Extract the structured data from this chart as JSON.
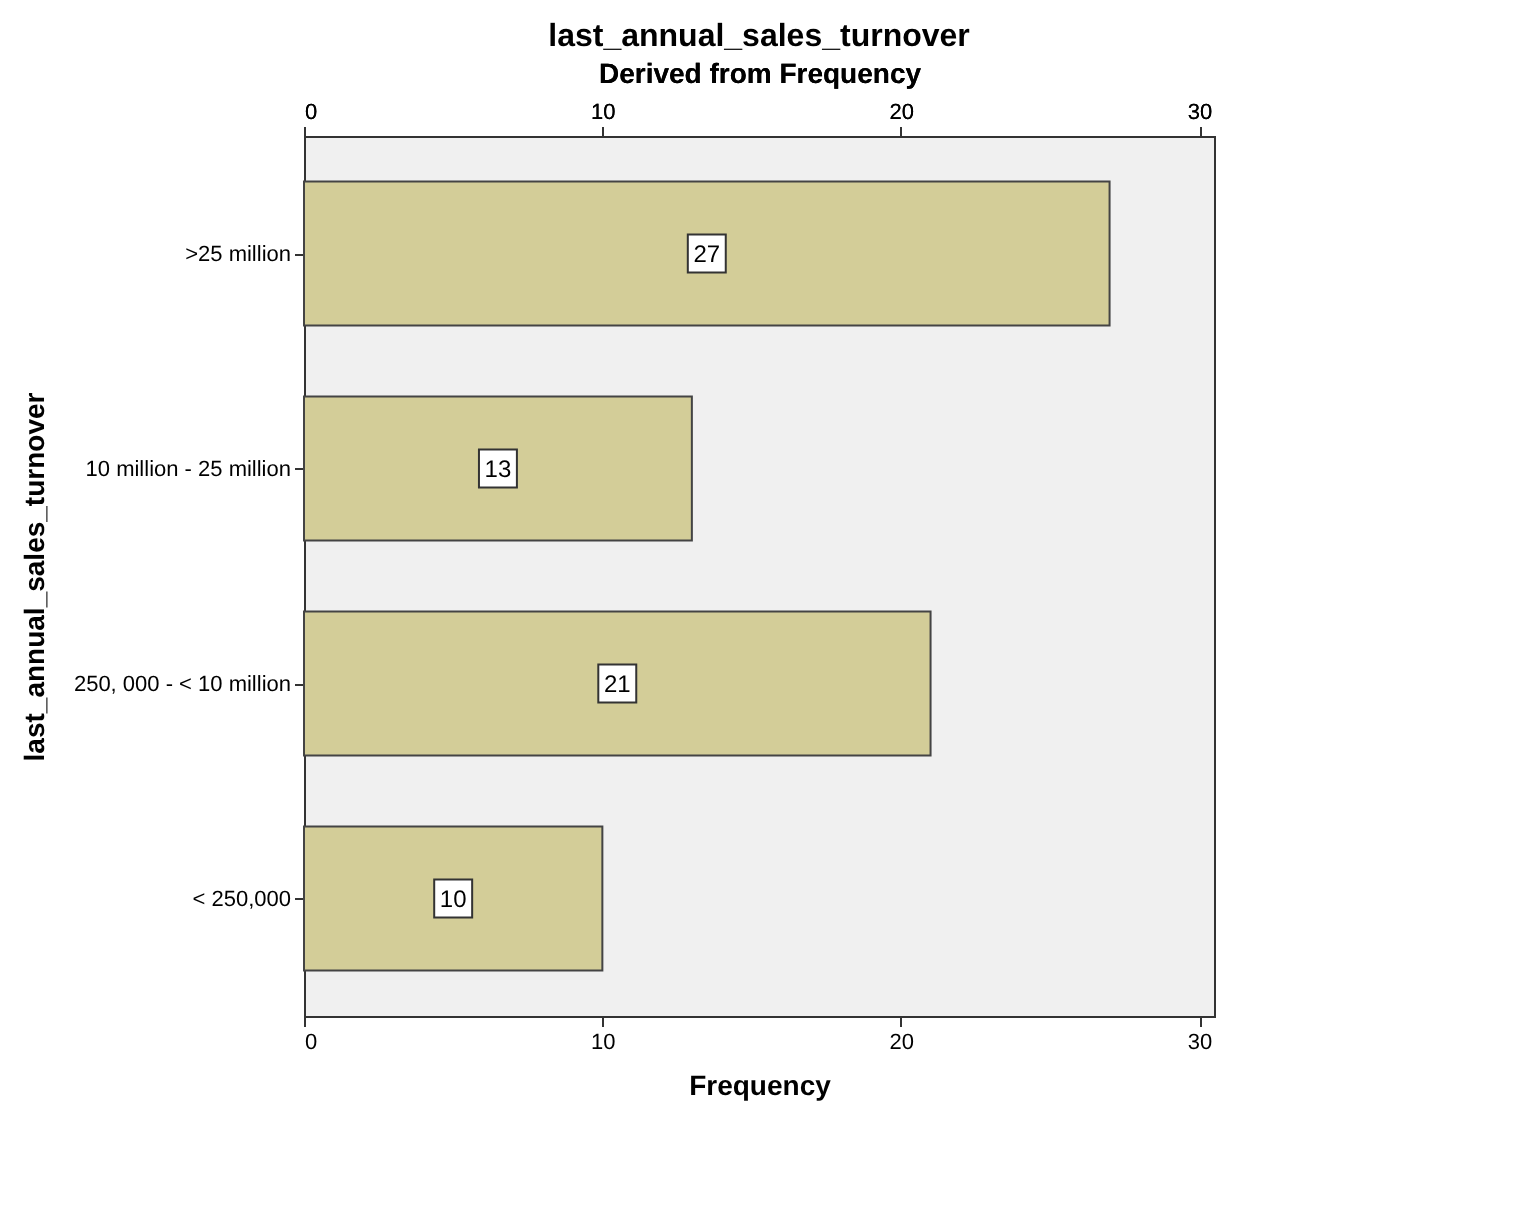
{
  "chart_data": {
    "type": "bar",
    "orientation": "horizontal",
    "title": "last_annual_sales_turnover",
    "x2label": "Derived from Frequency",
    "xlabel": "Frequency",
    "ylabel": "last_annual_sales_turnover",
    "categories": [
      ">25 million",
      "10 million  - 25 million",
      "250, 000 - < 10 million",
      "< 250,000"
    ],
    "values": [
      27,
      13,
      21,
      10
    ],
    "color": "#d3cd98",
    "data_labels": true,
    "xlim": [
      0,
      30.5
    ],
    "xticks": [
      0,
      10,
      20,
      30
    ],
    "x2lim": [
      0,
      30.5
    ],
    "x2ticks": [
      0,
      10,
      20,
      30
    ],
    "grid": false
  }
}
